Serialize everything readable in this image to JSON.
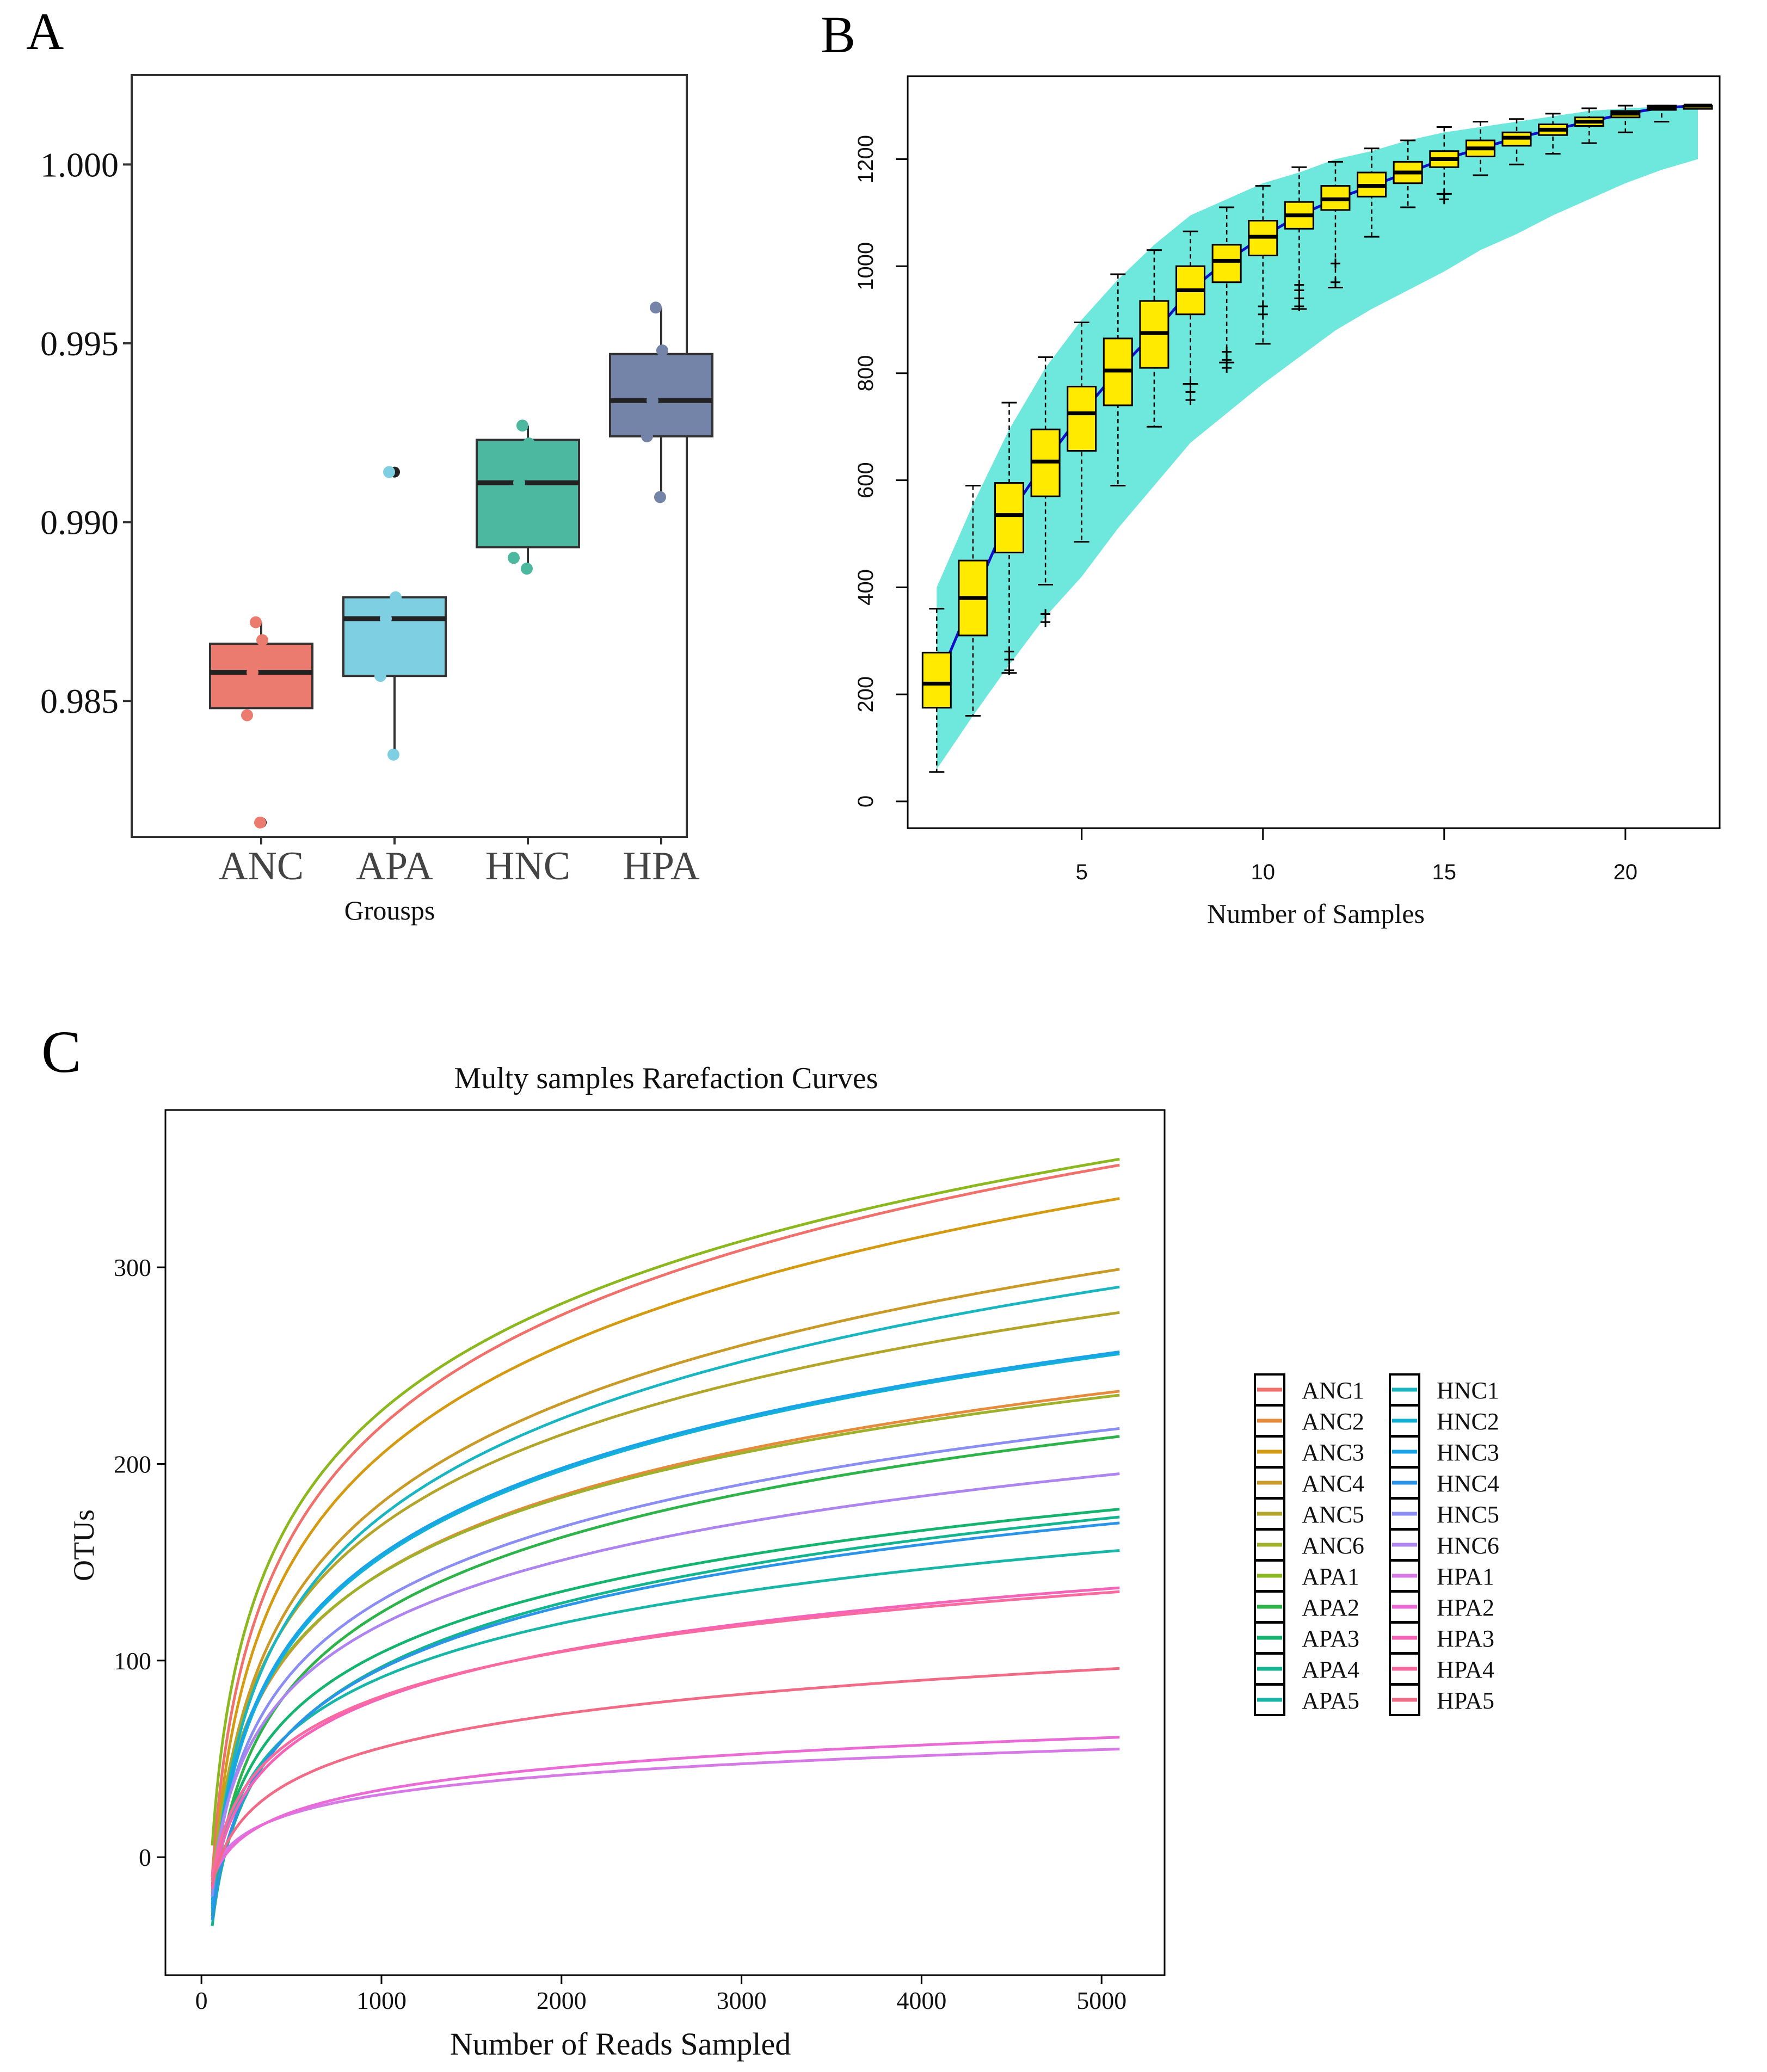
{
  "panel_labels": {
    "a": "A",
    "b": "B",
    "c": "C"
  },
  "colors": {
    "ANC": "#ec7b6f",
    "APA": "#7fcfe3",
    "HNC": "#4db8a0",
    "HPA": "#7484a8",
    "boxB": "#ffea00",
    "band": "#6ee8dc",
    "meanLine": "#1010c8"
  },
  "chart_data": [
    {
      "id": "A",
      "type": "box",
      "title": "",
      "xlabel": "Grousps",
      "ylabel": "",
      "categories": [
        "ANC",
        "APA",
        "HNC",
        "HPA"
      ],
      "ylim": [
        0.9812,
        1.0025
      ],
      "yticks": [
        0.985,
        0.99,
        0.995
      ],
      "ytick_labels": [
        "0.985",
        "0.990",
        "0.995",
        "1.000"
      ],
      "ytick_values": [
        0.985,
        0.99,
        0.995,
        1.0
      ],
      "boxes": [
        {
          "group": "ANC",
          "q1": 0.9848,
          "median": 0.9858,
          "q3": 0.9866,
          "wlow": 0.9848,
          "whigh": 0.9872,
          "points": [
            0.9872,
            0.9867,
            0.9858,
            0.9846,
            0.9816
          ],
          "outliers": [
            0.9816
          ]
        },
        {
          "group": "APA",
          "q1": 0.9857,
          "median": 0.9873,
          "q3": 0.9879,
          "wlow": 0.9835,
          "whigh": 0.9879,
          "points": [
            0.9914,
            0.9879,
            0.9873,
            0.9857,
            0.9835
          ],
          "outliers": [
            0.9914
          ]
        },
        {
          "group": "HNC",
          "q1": 0.9893,
          "median": 0.9911,
          "q3": 0.9923,
          "wlow": 0.9887,
          "whigh": 0.9927,
          "points": [
            0.9927,
            0.9922,
            0.9911,
            0.989,
            0.9887
          ],
          "outliers": []
        },
        {
          "group": "HPA",
          "q1": 0.9924,
          "median": 0.9934,
          "q3": 0.9947,
          "wlow": 0.9907,
          "whigh": 0.996,
          "points": [
            0.996,
            0.9948,
            0.9934,
            0.9924,
            0.9907
          ],
          "outliers": []
        }
      ]
    },
    {
      "id": "B",
      "type": "box",
      "title": "",
      "xlabel": "Number of Samples",
      "ylabel": "",
      "xlim": [
        0.2,
        22.6
      ],
      "ylim": [
        -50,
        1355
      ],
      "xticks": [
        5,
        10,
        15,
        20
      ],
      "yticks": [
        0,
        200,
        400,
        600,
        800,
        1000,
        1200
      ],
      "x": [
        1,
        2,
        3,
        4,
        5,
        6,
        7,
        8,
        9,
        10,
        11,
        12,
        13,
        14,
        15,
        16,
        17,
        18,
        19,
        20,
        21,
        22
      ],
      "q1": [
        175,
        310,
        465,
        570,
        655,
        740,
        810,
        910,
        970,
        1020,
        1070,
        1105,
        1130,
        1155,
        1185,
        1205,
        1225,
        1245,
        1262,
        1278,
        1292,
        1300
      ],
      "median": [
        220,
        380,
        535,
        635,
        725,
        805,
        875,
        955,
        1010,
        1055,
        1095,
        1125,
        1150,
        1175,
        1200,
        1220,
        1240,
        1255,
        1270,
        1285,
        1296,
        1300
      ],
      "q3": [
        278,
        450,
        595,
        695,
        775,
        865,
        935,
        1000,
        1040,
        1085,
        1120,
        1150,
        1175,
        1195,
        1215,
        1235,
        1250,
        1265,
        1278,
        1290,
        1300,
        1300
      ],
      "wlow": [
        55,
        160,
        240,
        405,
        485,
        590,
        700,
        780,
        820,
        855,
        920,
        960,
        1055,
        1110,
        1135,
        1170,
        1190,
        1210,
        1230,
        1250,
        1270,
        1300
      ],
      "whigh": [
        360,
        590,
        745,
        830,
        895,
        985,
        1030,
        1065,
        1110,
        1150,
        1185,
        1195,
        1220,
        1235,
        1260,
        1270,
        1275,
        1285,
        1295,
        1300,
        1300,
        1300
      ],
      "outliers": [
        [],
        [],
        [
          245,
          265,
          280
        ],
        [
          335,
          350
        ],
        [],
        [],
        [],
        [
          750,
          765,
          780
        ],
        [
          810,
          825,
          840
        ],
        [
          910,
          925
        ],
        [
          925,
          940,
          955,
          965
        ],
        [
          970,
          1005
        ],
        [],
        [],
        [
          1125,
          1135
        ],
        [],
        [],
        [],
        [],
        [],
        [],
        []
      ],
      "band_low": [
        60,
        160,
        255,
        345,
        420,
        510,
        590,
        670,
        725,
        780,
        830,
        880,
        920,
        955,
        990,
        1030,
        1060,
        1095,
        1125,
        1155,
        1180,
        1200
      ],
      "band_high": [
        400,
        555,
        695,
        810,
        900,
        975,
        1040,
        1095,
        1125,
        1155,
        1175,
        1200,
        1215,
        1235,
        1250,
        1260,
        1270,
        1280,
        1290,
        1295,
        1298,
        1300
      ]
    },
    {
      "id": "C",
      "type": "line",
      "title": "Multy samples Rarefaction Curves",
      "xlabel": "Number of Reads Sampled",
      "ylabel": "OTUs",
      "xlim": [
        -200,
        5350
      ],
      "ylim": [
        -60,
        380
      ],
      "xticks": [
        0,
        1000,
        2000,
        3000,
        4000,
        5000
      ],
      "yticks": [
        0,
        100,
        200,
        300
      ],
      "x_start": 60,
      "x_end": 5100,
      "note": "each curve is y = a*ln(x/60) + y0; final value at x=5100 listed as 'end'",
      "series": [
        {
          "name": "ANC1",
          "color": "#f0716b",
          "y0": -10,
          "end": 352
        },
        {
          "name": "ANC2",
          "color": "#e68a3c",
          "y0": -15,
          "end": 237
        },
        {
          "name": "ANC3",
          "color": "#d49a12",
          "y0": -20,
          "end": 335
        },
        {
          "name": "ANC4",
          "color": "#c99a28",
          "y0": -25,
          "end": 299
        },
        {
          "name": "ANC5",
          "color": "#b3a52a",
          "y0": -18,
          "end": 277
        },
        {
          "name": "ANC6",
          "color": "#9fb02a",
          "y0": -12,
          "end": 235
        },
        {
          "name": "APA1",
          "color": "#8bb81f",
          "y0": 6,
          "end": 355
        },
        {
          "name": "APA2",
          "color": "#2eb34a",
          "y0": -30,
          "end": 214
        },
        {
          "name": "APA3",
          "color": "#14b36e",
          "y0": -22,
          "end": 177
        },
        {
          "name": "APA4",
          "color": "#13b590",
          "y0": -35,
          "end": 173
        },
        {
          "name": "APA5",
          "color": "#18b6a6",
          "y0": -20,
          "end": 156
        },
        {
          "name": "HNC1",
          "color": "#19b5c0",
          "y0": -28,
          "end": 290
        },
        {
          "name": "HNC2",
          "color": "#12b3d6",
          "y0": -26,
          "end": 256
        },
        {
          "name": "HNC3",
          "color": "#1aa3e6",
          "y0": -24,
          "end": 257
        },
        {
          "name": "HNC4",
          "color": "#2b93e8",
          "y0": -32,
          "end": 170
        },
        {
          "name": "HNC5",
          "color": "#8a8ef2",
          "y0": -20,
          "end": 218
        },
        {
          "name": "HNC6",
          "color": "#ae84ee",
          "y0": -14,
          "end": 195
        },
        {
          "name": "HPA1",
          "color": "#d678e6",
          "y0": -8,
          "end": 55
        },
        {
          "name": "HPA2",
          "color": "#ea6ad6",
          "y0": -12,
          "end": 61
        },
        {
          "name": "HPA3",
          "color": "#f563b8",
          "y0": -16,
          "end": 137
        },
        {
          "name": "HPA4",
          "color": "#f86aa0",
          "y0": -10,
          "end": 135
        },
        {
          "name": "HPA5",
          "color": "#f26b86",
          "y0": -14,
          "end": 96
        }
      ],
      "legend": {
        "placement": "right",
        "columns": 2
      }
    }
  ]
}
